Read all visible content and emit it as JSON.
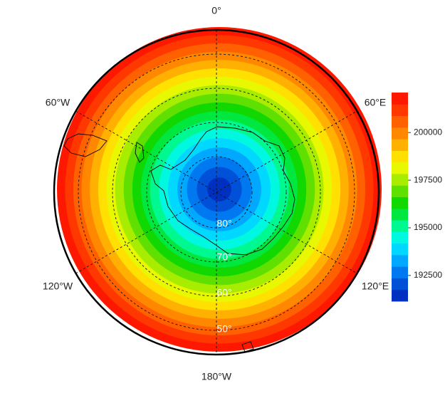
{
  "longitude_labels": [
    "0°",
    "60°E",
    "120°E",
    "180°W",
    "120°W",
    "60°W"
  ],
  "latitude_labels": [
    "80°",
    "70°",
    "60°",
    "50°"
  ],
  "colorbar": {
    "range": [
      191150,
      202100
    ],
    "ticks": [
      192500,
      195000,
      197500,
      200000
    ],
    "colors": [
      "#0030c0",
      "#0050d8",
      "#0078f0",
      "#00a8ff",
      "#00d8ff",
      "#00f8e0",
      "#00f890",
      "#00e840",
      "#10d800",
      "#60e000",
      "#a8ec00",
      "#e8f800",
      "#ffe000",
      "#ffb000",
      "#ff8800",
      "#ff6000",
      "#ff3800",
      "#ff1800"
    ]
  }
}
